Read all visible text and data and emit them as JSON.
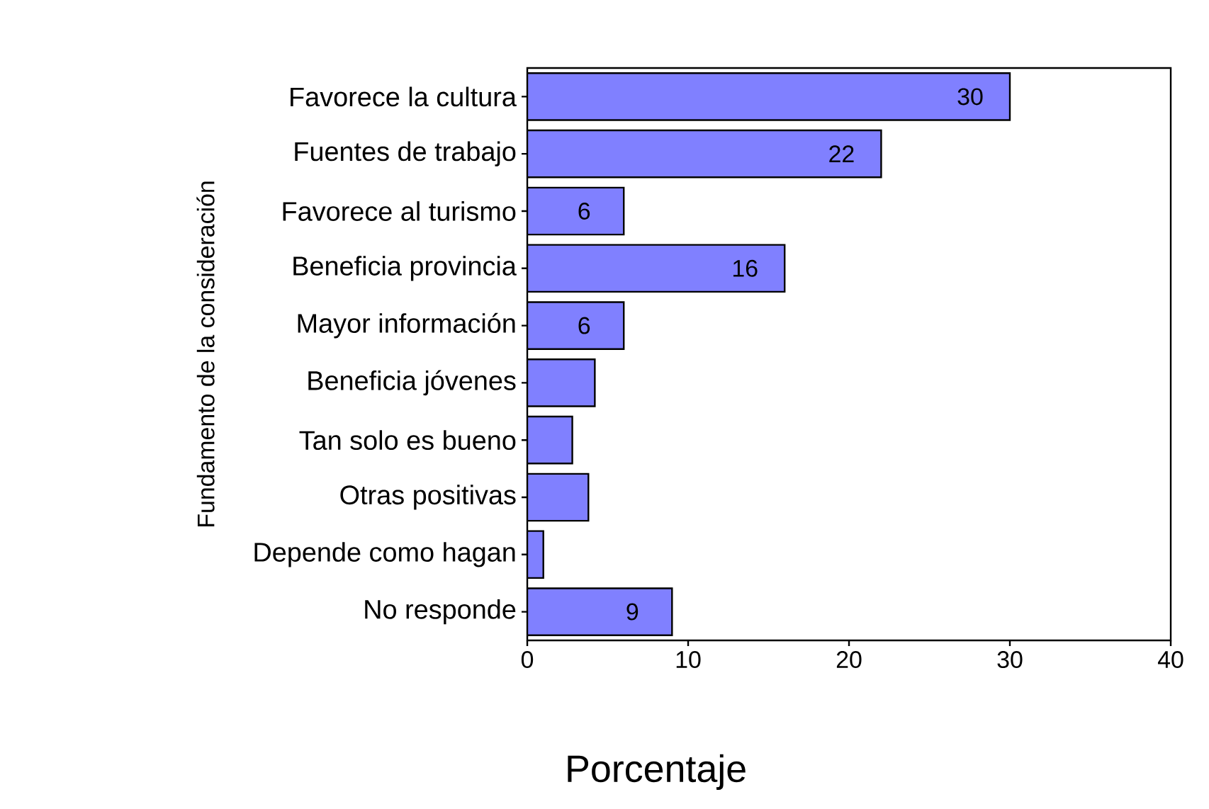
{
  "chart_data": {
    "type": "bar",
    "orientation": "horizontal",
    "categories": [
      "Favorece la cultura",
      "Fuentes de trabajo",
      "Favorece al turismo",
      "Beneficia provincia",
      "Mayor información",
      "Beneficia jóvenes",
      "Tan solo es bueno",
      "Otras positivas",
      "Depende como hagan",
      "No responde"
    ],
    "values": [
      30,
      22,
      6,
      16,
      6,
      4.2,
      2.8,
      3.8,
      1.0,
      9
    ],
    "value_labels": [
      "30",
      "22",
      "6",
      "16",
      "6",
      null,
      null,
      null,
      null,
      "9"
    ],
    "color": "#8080ff",
    "xlim": [
      0,
      40
    ],
    "xticks": [
      0,
      10,
      20,
      30,
      40
    ],
    "xlabel": "Porcentaje",
    "ylabel": "Fundamento de la consideración",
    "grid": false
  }
}
